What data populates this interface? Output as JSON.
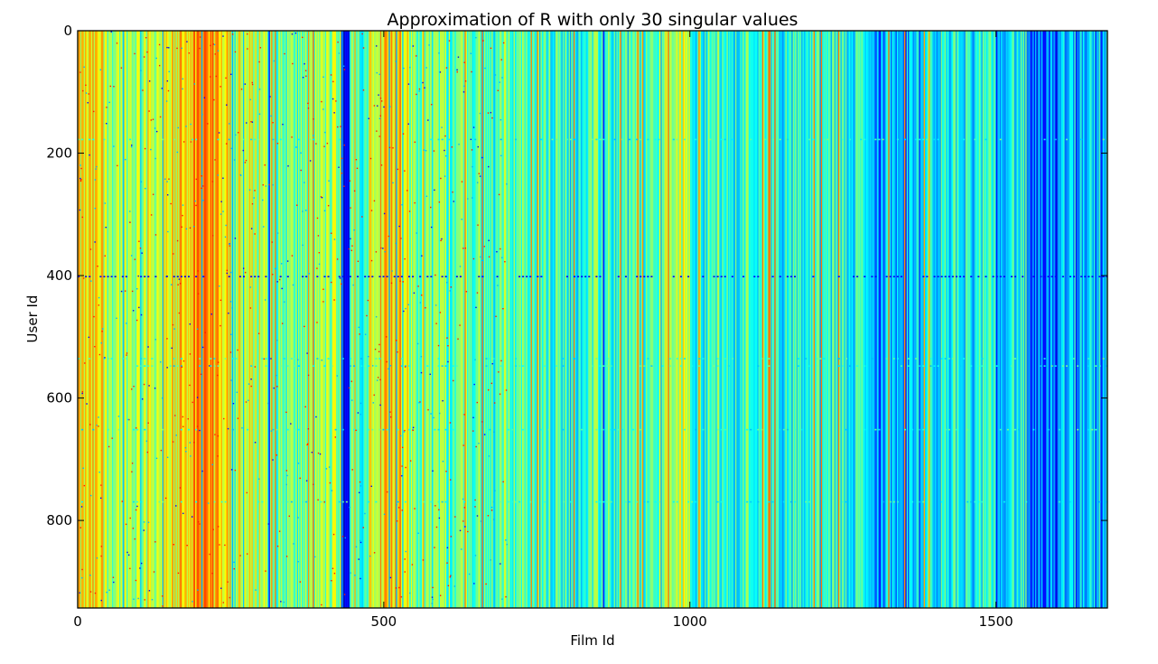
{
  "chart_data": {
    "type": "heatmap",
    "title": "Approximation of R with only 30 singular values",
    "xlabel": "Film Id",
    "ylabel": "User Id",
    "xlim": [
      0,
      1682
    ],
    "ylim": [
      943,
      0
    ],
    "y_inverted": true,
    "xticks": [
      0,
      500,
      1000,
      1500
    ],
    "xtick_labels": [
      "0",
      "500",
      "1000",
      "1500"
    ],
    "yticks": [
      0,
      200,
      400,
      600,
      800
    ],
    "ytick_labels": [
      "0",
      "200",
      "400",
      "600",
      "800"
    ],
    "colormap": "jet",
    "grid": false,
    "legend": "none",
    "column_profile": [
      {
        "x0": 0,
        "x1": 40,
        "value": 0.62
      },
      {
        "x0": 40,
        "x1": 100,
        "value": 0.55
      },
      {
        "x0": 100,
        "x1": 165,
        "value": 0.58
      },
      {
        "x0": 165,
        "x1": 250,
        "value": 0.68
      },
      {
        "x0": 250,
        "x1": 310,
        "value": 0.57
      },
      {
        "x0": 310,
        "x1": 380,
        "value": 0.48
      },
      {
        "x0": 380,
        "x1": 430,
        "value": 0.52
      },
      {
        "x0": 430,
        "x1": 445,
        "value": 0.15
      },
      {
        "x0": 445,
        "x1": 475,
        "value": 0.45
      },
      {
        "x0": 475,
        "x1": 540,
        "value": 0.66
      },
      {
        "x0": 540,
        "x1": 600,
        "value": 0.5
      },
      {
        "x0": 600,
        "x1": 750,
        "value": 0.47
      },
      {
        "x0": 750,
        "x1": 950,
        "value": 0.43
      },
      {
        "x0": 950,
        "x1": 1000,
        "value": 0.55
      },
      {
        "x0": 1000,
        "x1": 1140,
        "value": 0.44
      },
      {
        "x0": 1140,
        "x1": 1300,
        "value": 0.4
      },
      {
        "x0": 1300,
        "x1": 1380,
        "value": 0.3
      },
      {
        "x0": 1380,
        "x1": 1550,
        "value": 0.38
      },
      {
        "x0": 1550,
        "x1": 1600,
        "value": 0.2
      },
      {
        "x0": 1600,
        "x1": 1682,
        "value": 0.34
      }
    ],
    "dark_columns": [
      312,
      436,
      440,
      858,
      1310,
      1352,
      1500,
      1562,
      1578,
      1580,
      1586,
      1630,
      1662,
      1673
    ],
    "bright_columns": [
      1128,
      1139
    ],
    "dark_row": 402
  }
}
